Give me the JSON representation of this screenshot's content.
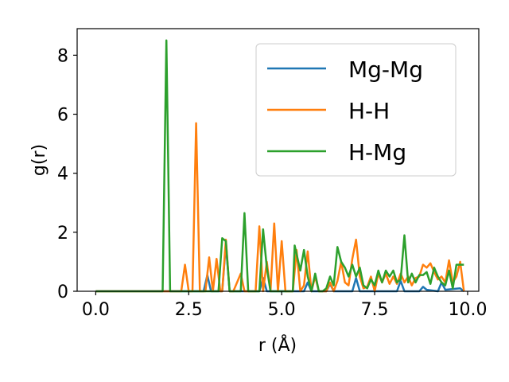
{
  "chart_data": {
    "type": "line",
    "title": "",
    "xlabel": "r (Å)",
    "ylabel": "g(r)",
    "xlim": [
      -0.5,
      10.3
    ],
    "ylim": [
      0,
      8.9
    ],
    "xticks": [
      0.0,
      2.5,
      5.0,
      7.5,
      10.0
    ],
    "xtick_labels": [
      "0.0",
      "2.5",
      "5.0",
      "7.5",
      "10.0"
    ],
    "yticks": [
      0,
      2,
      4,
      6,
      8
    ],
    "ytick_labels": [
      "0",
      "2",
      "4",
      "6",
      "8"
    ],
    "grid": false,
    "legend_position": "top-right",
    "series": [
      {
        "name": "Mg-Mg",
        "color": "#1f77b4",
        "points": [
          [
            0.0,
            0
          ],
          [
            2.9,
            0
          ],
          [
            3.0,
            0.55
          ],
          [
            3.1,
            0
          ],
          [
            3.4,
            0
          ],
          [
            3.5,
            1.6
          ],
          [
            3.6,
            0
          ],
          [
            4.4,
            0
          ],
          [
            4.5,
            0.45
          ],
          [
            4.6,
            0
          ],
          [
            5.6,
            0
          ],
          [
            5.7,
            0.3
          ],
          [
            5.8,
            0
          ],
          [
            6.2,
            0
          ],
          [
            6.3,
            0.25
          ],
          [
            6.4,
            0
          ],
          [
            6.9,
            0
          ],
          [
            7.0,
            0.45
          ],
          [
            7.1,
            0
          ],
          [
            8.1,
            0
          ],
          [
            8.2,
            0.35
          ],
          [
            8.3,
            0
          ],
          [
            8.7,
            0
          ],
          [
            8.8,
            0.15
          ],
          [
            8.9,
            0.05
          ],
          [
            9.2,
            0
          ],
          [
            9.3,
            0.3
          ],
          [
            9.4,
            0.05
          ],
          [
            9.8,
            0.1
          ],
          [
            9.9,
            0
          ]
        ]
      },
      {
        "name": "H-H",
        "color": "#ff7f0e",
        "points": [
          [
            0.0,
            0
          ],
          [
            2.3,
            0
          ],
          [
            2.4,
            0.9
          ],
          [
            2.5,
            0
          ],
          [
            2.6,
            0
          ],
          [
            2.7,
            5.7
          ],
          [
            2.8,
            0
          ],
          [
            2.95,
            0
          ],
          [
            3.05,
            1.15
          ],
          [
            3.15,
            0
          ],
          [
            3.25,
            1.1
          ],
          [
            3.35,
            0
          ],
          [
            3.4,
            0
          ],
          [
            3.5,
            1.75
          ],
          [
            3.6,
            0
          ],
          [
            3.7,
            0
          ],
          [
            3.9,
            0.6
          ],
          [
            4.0,
            0
          ],
          [
            4.3,
            0
          ],
          [
            4.4,
            2.2
          ],
          [
            4.5,
            0
          ],
          [
            4.6,
            1.0
          ],
          [
            4.7,
            0
          ],
          [
            4.8,
            2.3
          ],
          [
            4.9,
            0
          ],
          [
            5.0,
            1.7
          ],
          [
            5.1,
            0
          ],
          [
            5.3,
            0
          ],
          [
            5.4,
            1.4
          ],
          [
            5.5,
            0
          ],
          [
            5.6,
            0.2
          ],
          [
            5.7,
            1.35
          ],
          [
            5.8,
            0
          ],
          [
            5.9,
            0.5
          ],
          [
            6.0,
            0
          ],
          [
            6.2,
            0
          ],
          [
            6.3,
            0.3
          ],
          [
            6.4,
            0
          ],
          [
            6.5,
            0.35
          ],
          [
            6.6,
            1.0
          ],
          [
            6.7,
            0.3
          ],
          [
            6.8,
            0.2
          ],
          [
            6.9,
            1.1
          ],
          [
            7.0,
            1.75
          ],
          [
            7.1,
            0.5
          ],
          [
            7.2,
            0.1
          ],
          [
            7.3,
            0.15
          ],
          [
            7.4,
            0.5
          ],
          [
            7.5,
            0
          ],
          [
            7.6,
            0.6
          ],
          [
            7.7,
            0.3
          ],
          [
            7.8,
            0.6
          ],
          [
            7.9,
            0.25
          ],
          [
            8.0,
            0.5
          ],
          [
            8.1,
            0.25
          ],
          [
            8.2,
            0.6
          ],
          [
            8.3,
            0.3
          ],
          [
            8.4,
            0.5
          ],
          [
            8.5,
            0.2
          ],
          [
            8.6,
            0.45
          ],
          [
            8.7,
            0.5
          ],
          [
            8.8,
            0.9
          ],
          [
            8.9,
            0.8
          ],
          [
            9.0,
            0.95
          ],
          [
            9.1,
            0.65
          ],
          [
            9.2,
            0.4
          ],
          [
            9.3,
            0.5
          ],
          [
            9.4,
            0.3
          ],
          [
            9.5,
            1.05
          ],
          [
            9.6,
            0.3
          ],
          [
            9.7,
            0.5
          ],
          [
            9.8,
            1.0
          ],
          [
            9.9,
            0
          ]
        ]
      },
      {
        "name": "H-Mg",
        "color": "#2ca02c",
        "points": [
          [
            0.0,
            0
          ],
          [
            1.8,
            0
          ],
          [
            1.9,
            8.5
          ],
          [
            2.0,
            0
          ],
          [
            3.3,
            0
          ],
          [
            3.4,
            1.8
          ],
          [
            3.5,
            1.7
          ],
          [
            3.6,
            0
          ],
          [
            3.9,
            0
          ],
          [
            4.0,
            2.65
          ],
          [
            4.1,
            0
          ],
          [
            4.4,
            0
          ],
          [
            4.5,
            2.1
          ],
          [
            4.6,
            0.8
          ],
          [
            4.7,
            0
          ],
          [
            5.3,
            0
          ],
          [
            5.35,
            1.55
          ],
          [
            5.5,
            0.7
          ],
          [
            5.6,
            1.4
          ],
          [
            5.7,
            0.5
          ],
          [
            5.8,
            0
          ],
          [
            5.9,
            0.6
          ],
          [
            6.0,
            0
          ],
          [
            6.1,
            0
          ],
          [
            6.2,
            0.1
          ],
          [
            6.3,
            0.5
          ],
          [
            6.4,
            0.2
          ],
          [
            6.5,
            1.5
          ],
          [
            6.6,
            1.0
          ],
          [
            6.7,
            0.8
          ],
          [
            6.8,
            0.5
          ],
          [
            6.9,
            0.9
          ],
          [
            7.0,
            0.5
          ],
          [
            7.1,
            0.8
          ],
          [
            7.2,
            0.2
          ],
          [
            7.3,
            0.1
          ],
          [
            7.4,
            0.4
          ],
          [
            7.5,
            0.2
          ],
          [
            7.6,
            0.7
          ],
          [
            7.7,
            0.3
          ],
          [
            7.8,
            0.7
          ],
          [
            7.9,
            0.5
          ],
          [
            8.0,
            0.7
          ],
          [
            8.1,
            0.3
          ],
          [
            8.2,
            0.4
          ],
          [
            8.3,
            1.9
          ],
          [
            8.4,
            0.3
          ],
          [
            8.5,
            0.6
          ],
          [
            8.6,
            0.3
          ],
          [
            8.7,
            0.55
          ],
          [
            8.8,
            0.55
          ],
          [
            8.9,
            0.65
          ],
          [
            9.0,
            0.25
          ],
          [
            9.1,
            0.8
          ],
          [
            9.2,
            0.5
          ],
          [
            9.3,
            0.3
          ],
          [
            9.4,
            0.2
          ],
          [
            9.5,
            0.7
          ],
          [
            9.6,
            0.1
          ],
          [
            9.7,
            0.9
          ],
          [
            9.8,
            0.9
          ],
          [
            9.9,
            0.9
          ]
        ]
      }
    ]
  }
}
